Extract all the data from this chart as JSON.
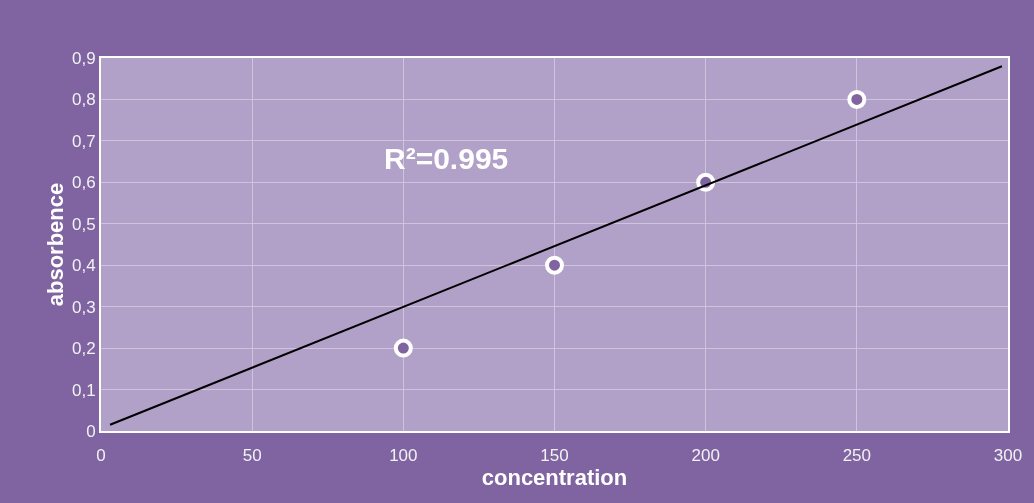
{
  "chart_data": {
    "type": "scatter",
    "xlabel": "concentration",
    "ylabel": "absorbence",
    "annotations": [
      "R²=0.995"
    ],
    "x": [
      100,
      150,
      200,
      250
    ],
    "series": [
      {
        "color": "#ffffff",
        "values": [
          0.2,
          0.4,
          0.6,
          0.8
        ],
        "marker": "circle"
      },
      {
        "type": "line",
        "color": "#000000",
        "x": [
          3,
          298
        ],
        "values": [
          0.015,
          0.88
        ],
        "line_style": "solid"
      }
    ],
    "xlim": [
      0,
      300
    ],
    "xticks": [
      0,
      50,
      100,
      150,
      200,
      250,
      300
    ],
    "ylim": [
      0,
      0.9
    ],
    "yticks": [
      {
        "value": 0,
        "label": "0"
      },
      {
        "value": 0.1,
        "label": "0,1"
      },
      {
        "value": 0.2,
        "label": "0,2"
      },
      {
        "value": 0.3,
        "label": "0,3"
      },
      {
        "value": 0.4,
        "label": "0,4"
      },
      {
        "value": 0.5,
        "label": "0,5"
      },
      {
        "value": 0.6,
        "label": "0,6"
      },
      {
        "value": 0.7,
        "label": "0,7"
      },
      {
        "value": 0.8,
        "label": "0,8"
      },
      {
        "value": 0.9,
        "label": "0,9"
      }
    ],
    "grid": true
  }
}
